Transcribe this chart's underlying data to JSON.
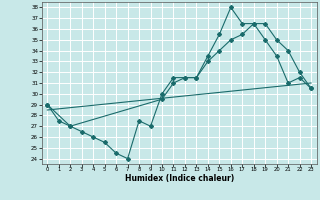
{
  "xlabel": "Humidex (Indice chaleur)",
  "xlim": [
    -0.5,
    23.5
  ],
  "ylim": [
    23.5,
    38.5
  ],
  "yticks": [
    24,
    25,
    26,
    27,
    28,
    29,
    30,
    31,
    32,
    33,
    34,
    35,
    36,
    37,
    38
  ],
  "xticks": [
    0,
    1,
    2,
    3,
    4,
    5,
    6,
    7,
    8,
    9,
    10,
    11,
    12,
    13,
    14,
    15,
    16,
    17,
    18,
    19,
    20,
    21,
    22,
    23
  ],
  "bg_color": "#c8e8e8",
  "grid_color": "#ffffff",
  "line_color": "#1a6b6b",
  "line1_x": [
    0,
    1,
    2,
    3,
    4,
    5,
    6,
    7,
    8,
    9,
    10,
    11,
    12,
    13,
    14,
    15,
    16,
    17,
    18,
    19,
    20,
    21,
    22,
    23
  ],
  "line1_y": [
    29,
    27.5,
    27,
    26.5,
    26,
    25.5,
    24.5,
    24,
    27.5,
    27,
    30,
    31.5,
    31.5,
    31.5,
    33.5,
    35.5,
    38,
    36.5,
    36.5,
    35,
    33.5,
    31,
    31.5,
    30.5
  ],
  "line2_x": [
    0,
    2,
    10,
    11,
    12,
    13,
    14,
    15,
    16,
    17,
    18,
    19,
    20,
    21,
    22,
    23
  ],
  "line2_y": [
    29,
    27,
    29.5,
    31,
    31.5,
    31.5,
    33,
    34,
    35,
    35.5,
    36.5,
    36.5,
    35,
    34,
    32,
    30.5
  ],
  "line3_x": [
    0,
    23
  ],
  "line3_y": [
    28.5,
    31
  ]
}
